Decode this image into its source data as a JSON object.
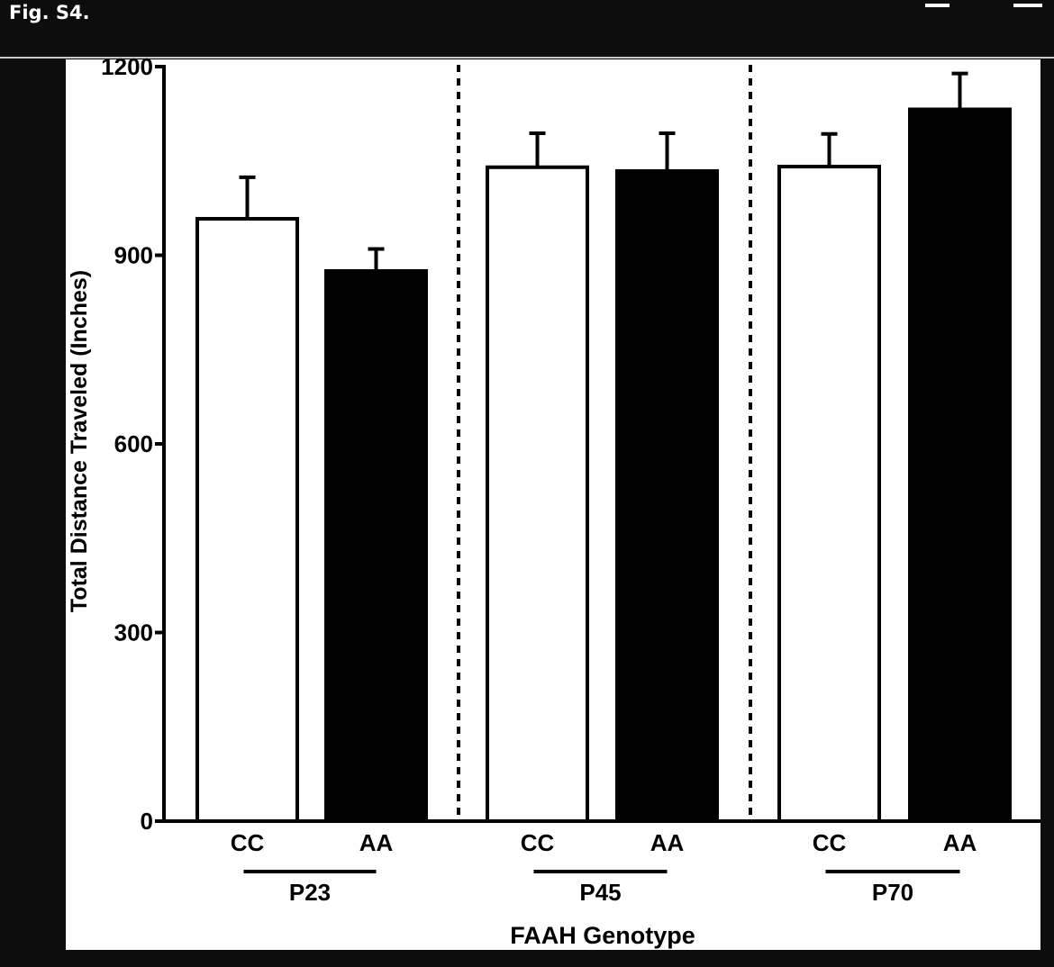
{
  "header": {
    "title": "Fig. S4."
  },
  "toolbar": {
    "icons": [
      "search-icon",
      "download-icon",
      "menu-icon"
    ]
  },
  "chart_data": {
    "type": "bar",
    "title": "",
    "xlabel": "FAAH Genotype",
    "ylabel": "Total Distance Traveled (Inches)",
    "ylim": [
      0,
      1200
    ],
    "yticks": [
      "0",
      "300",
      "600",
      "900",
      "1200"
    ],
    "groups": [
      "P23",
      "P45",
      "P70"
    ],
    "categories": [
      "CC",
      "AA",
      "CC",
      "AA",
      "CC",
      "AA"
    ],
    "values": [
      958,
      875,
      1040,
      1034,
      1041,
      1132
    ],
    "errors": [
      66,
      35,
      54,
      60,
      52,
      57
    ],
    "fills": [
      "#ffffff",
      "#000000",
      "#ffffff",
      "#000000",
      "#ffffff",
      "#000000"
    ],
    "grid": false
  }
}
